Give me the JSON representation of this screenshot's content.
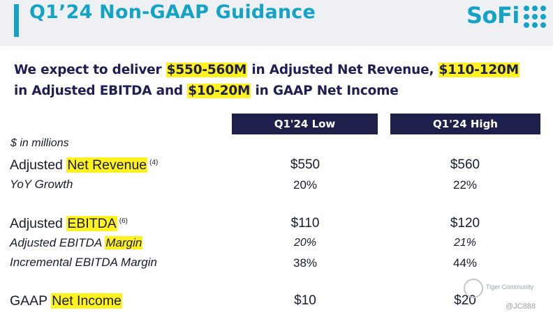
{
  "header": {
    "title": "Q1’24 Non-GAAP Guidance",
    "logo": "SoFi",
    "brand_color": "#14a3c7"
  },
  "headline": {
    "p1": "We expect to deliver ",
    "h1": "$550-560M",
    "p2": " in Adjusted Net Revenue, ",
    "h2": "$110-120M",
    "p3": "in Adjusted EBITDA and ",
    "h3": "$10-20M",
    "p4": " in GAAP Net Income"
  },
  "table": {
    "units": "$ in millions",
    "columns": [
      "Q1'24 Low",
      "Q1'24 High"
    ],
    "rows": [
      {
        "pre": "Adjusted ",
        "hl": "Net Revenue",
        "post": "",
        "note": "(4)",
        "low": "$550",
        "high": "$560"
      },
      {
        "pre": "YoY Growth",
        "low": "20%",
        "high": "22%"
      },
      {
        "pre": "Adjusted ",
        "hl": "EBITDA",
        "post": "",
        "note": "(6)",
        "low": "$110",
        "high": "$120"
      },
      {
        "pre": "Adjusted EBITDA ",
        "hl": "Margin",
        "low": "20%",
        "high": "21%"
      },
      {
        "pre": "Incremental EBITDA Margin",
        "low": "38%",
        "high": "44%"
      },
      {
        "pre": "GAAP ",
        "hl": "Net Income",
        "low": "$10",
        "high": "$20"
      }
    ]
  },
  "watermark": {
    "brand": "Tiger Community",
    "handle": "@JC888"
  }
}
